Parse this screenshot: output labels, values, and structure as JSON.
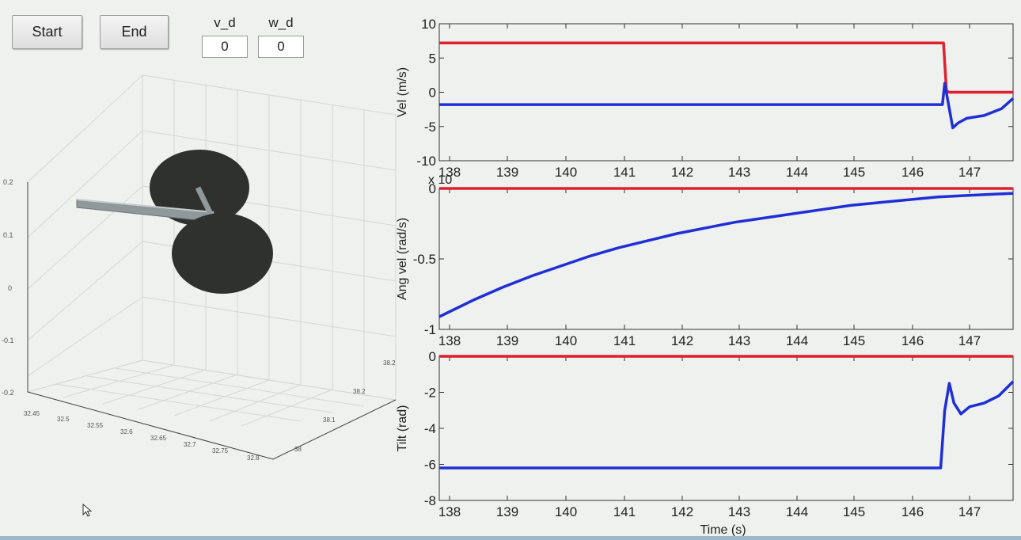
{
  "controls": {
    "start_label": "Start",
    "end_label": "End",
    "v_d": {
      "label": "v_d",
      "value": "0"
    },
    "w_d": {
      "label": "w_d",
      "value": "0"
    }
  },
  "view3d": {
    "z_ticks": [
      "0.2",
      "0.1",
      "0",
      "-0.1",
      "-0.2"
    ],
    "x_ticks": [
      "32.45",
      "32.5",
      "32.55",
      "32.6",
      "32.65",
      "32.7",
      "32.75",
      "32.8"
    ],
    "y_ticks": [
      "38",
      "38.1",
      "38.2",
      "38.2"
    ],
    "body_color": "#2f312f",
    "rod_color": "#9aa3a6"
  },
  "chart_data": [
    {
      "type": "line",
      "ylabel": "Vel (m/s)",
      "xlabel": "",
      "xlim": [
        137.9,
        147.8
      ],
      "ylim": [
        -10,
        10
      ],
      "yticks": [
        "10",
        "5",
        "0",
        "-5",
        "-10"
      ],
      "xticks": [
        "138",
        "139",
        "140",
        "141",
        "142",
        "143",
        "144",
        "145",
        "146",
        "147"
      ],
      "series": [
        {
          "color": "#e02030",
          "x": [
            137.9,
            146.6,
            146.65,
            146.7,
            147.8
          ],
          "y": [
            7.2,
            7.2,
            0.2,
            0,
            0
          ]
        },
        {
          "color": "#1f2fd6",
          "x": [
            137.9,
            146.58,
            146.62,
            146.68,
            146.76,
            146.85,
            147.0,
            147.3,
            147.6,
            147.8
          ],
          "y": [
            -1.8,
            -1.8,
            1.3,
            -1.5,
            -5.2,
            -4.5,
            -3.8,
            -3.4,
            -2.4,
            -0.9
          ]
        }
      ]
    },
    {
      "type": "line",
      "ylabel": "Ang vel (rad/s)",
      "xlabel": "",
      "xlim": [
        137.9,
        147.8
      ],
      "ylim": [
        -1,
        0
      ],
      "yticks": [
        "0",
        "-0.5",
        "-1"
      ],
      "xticks": [
        "138",
        "139",
        "140",
        "141",
        "142",
        "143",
        "144",
        "145",
        "146",
        "147"
      ],
      "exponent_label": "x 10",
      "series": [
        {
          "color": "#e02030",
          "x": [
            137.9,
            147.8
          ],
          "y": [
            0,
            0
          ]
        },
        {
          "color": "#1f2fd6",
          "x": [
            137.9,
            138.5,
            139.0,
            139.5,
            140.0,
            140.5,
            141.0,
            141.5,
            142.0,
            142.5,
            143.0,
            143.5,
            144.0,
            144.5,
            145.0,
            145.5,
            146.0,
            146.5,
            147.0,
            147.5,
            147.8
          ],
          "y": [
            -0.91,
            -0.79,
            -0.7,
            -0.62,
            -0.55,
            -0.48,
            -0.42,
            -0.37,
            -0.32,
            -0.28,
            -0.24,
            -0.21,
            -0.18,
            -0.15,
            -0.12,
            -0.1,
            -0.08,
            -0.06,
            -0.05,
            -0.04,
            -0.035
          ]
        }
      ]
    },
    {
      "type": "line",
      "ylabel": "Tilt (rad)",
      "xlabel": "Time (s)",
      "xlim": [
        137.9,
        147.8
      ],
      "ylim": [
        -8,
        0
      ],
      "yticks": [
        "0",
        "-2",
        "-4",
        "-6",
        "-8"
      ],
      "xticks": [
        "138",
        "139",
        "140",
        "141",
        "142",
        "143",
        "144",
        "145",
        "146",
        "147"
      ],
      "series": [
        {
          "color": "#e02030",
          "x": [
            137.9,
            147.8
          ],
          "y": [
            0,
            0
          ]
        },
        {
          "color": "#1f2fd6",
          "x": [
            137.9,
            146.55,
            146.62,
            146.7,
            146.78,
            146.9,
            147.05,
            147.3,
            147.55,
            147.8
          ],
          "y": [
            -6.2,
            -6.2,
            -3.0,
            -1.5,
            -2.6,
            -3.2,
            -2.8,
            -2.6,
            -2.2,
            -1.4
          ]
        }
      ]
    }
  ]
}
